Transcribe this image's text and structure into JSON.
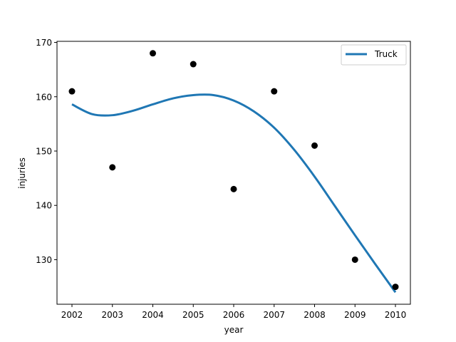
{
  "chart_data": {
    "type": "scatter",
    "xlabel": "year",
    "ylabel": "injuries",
    "xlim": [
      2001.63,
      2010.37
    ],
    "ylim": [
      121.8,
      170.2
    ],
    "xticks": [
      2002,
      2003,
      2004,
      2005,
      2006,
      2007,
      2008,
      2009,
      2010
    ],
    "yticks": [
      130,
      140,
      150,
      160,
      170
    ],
    "points": {
      "x": [
        2002,
        2003,
        2004,
        2005,
        2006,
        2007,
        2008,
        2009,
        2010
      ],
      "y": [
        161,
        147,
        168,
        166,
        143,
        161,
        151,
        130,
        125
      ],
      "color": "#000000"
    },
    "fit_line": {
      "name": "Truck",
      "color": "#1f77b4",
      "x": [
        2002,
        2002.5,
        2003,
        2003.5,
        2004,
        2004.5,
        2005,
        2005.5,
        2006,
        2006.5,
        2007,
        2007.5,
        2008,
        2008.5,
        2009,
        2009.5,
        2010
      ],
      "y": [
        158.6,
        156.8,
        156.6,
        157.4,
        158.6,
        159.7,
        160.3,
        160.3,
        159.3,
        157.3,
        154.3,
        150.2,
        145.3,
        139.9,
        134.5,
        129.2,
        124.0
      ]
    },
    "legend_position": "top-right",
    "grid": false
  }
}
